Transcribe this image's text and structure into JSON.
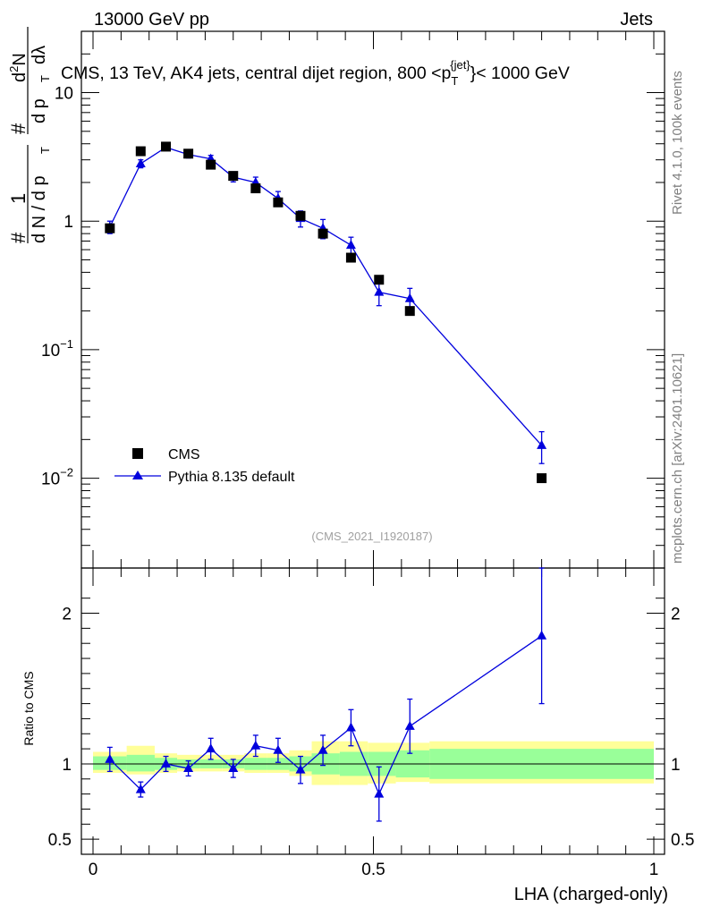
{
  "header": {
    "left": "13000 GeV pp",
    "right": "Jets"
  },
  "side_text": {
    "rivet": "Rivet 4.1.0,  100k events",
    "mcplots": "mcplots.cern.ch [arXiv:2401.10621]"
  },
  "chart_data": [
    {
      "type": "scatter",
      "panel": "main",
      "title": "CMS, 13 TeV, AK4 jets, central dijet region, 800 <p_T^{jet}< 1000 GeV",
      "title_parts": {
        "prefix": "CMS, 13 TeV, AK4 jets, central dijet region, 800 <p",
        "sub": "T",
        "sup": "{jet}",
        "suffix": "}< 1000 GeV"
      },
      "ylabel": "1/N dN/dp_T d²N/dp_T dλ",
      "ylabel_parts": {
        "hash": "#",
        "one": "1",
        "dN": "d N / d p",
        "T": "T",
        "d2N": "d²N",
        "dpdl": "d p",
        "dl": "dλ"
      },
      "yscale": "log",
      "ylim": [
        0.002,
        30
      ],
      "ytick_labels": [
        "10⁻²",
        "10⁻¹",
        "1",
        "10"
      ],
      "ytick_parts": [
        {
          "base": "10",
          "exp": "−2"
        },
        {
          "base": "10",
          "exp": "−1"
        },
        {
          "base": "1",
          "exp": ""
        },
        {
          "base": "10",
          "exp": ""
        }
      ],
      "watermark": "(CMS_2021_I1920187)",
      "legend": {
        "position": "bottom-left",
        "entries": [
          "CMS",
          "Pythia 8.135 default"
        ]
      },
      "series": [
        {
          "name": "CMS",
          "marker": "square",
          "color": "#000000",
          "x": [
            0.03,
            0.085,
            0.13,
            0.17,
            0.21,
            0.25,
            0.29,
            0.33,
            0.37,
            0.41,
            0.46,
            0.51,
            0.565,
            0.8
          ],
          "y": [
            0.88,
            3.5,
            3.8,
            3.35,
            2.75,
            2.25,
            1.8,
            1.4,
            1.1,
            0.8,
            0.52,
            0.35,
            0.2,
            0.01
          ]
        },
        {
          "name": "Pythia 8.135 default",
          "marker": "triangle",
          "color": "#0000dd",
          "x": [
            0.03,
            0.085,
            0.13,
            0.17,
            0.21,
            0.25,
            0.29,
            0.33,
            0.37,
            0.41,
            0.46,
            0.51,
            0.565,
            0.8
          ],
          "y": [
            0.9,
            2.8,
            3.75,
            3.3,
            3.05,
            2.2,
            2.0,
            1.5,
            1.05,
            0.88,
            0.65,
            0.28,
            0.25,
            0.018
          ],
          "err": [
            0.1,
            0.2,
            0.2,
            0.2,
            0.2,
            0.18,
            0.2,
            0.2,
            0.15,
            0.15,
            0.1,
            0.06,
            0.05,
            0.005
          ]
        }
      ]
    },
    {
      "type": "line",
      "panel": "ratio",
      "xlabel": "LHA (charged-only)",
      "ylabel": "Ratio to CMS",
      "ylim": [
        0.4,
        2.3
      ],
      "yticks": [
        0.5,
        1,
        2
      ],
      "ytick_labels": [
        "0.5",
        "1",
        "2"
      ],
      "xlim": [
        0,
        1
      ],
      "xticks": [
        0,
        0.5,
        1
      ],
      "xtick_labels": [
        "0",
        "0.5",
        "1"
      ],
      "band_edges": [
        0.0,
        0.06,
        0.11,
        0.15,
        0.19,
        0.23,
        0.27,
        0.31,
        0.35,
        0.39,
        0.44,
        0.49,
        0.54,
        0.6,
        1.0
      ],
      "band_green": [
        [
          0.96,
          1.05
        ],
        [
          0.95,
          1.06
        ],
        [
          0.96,
          1.04
        ],
        [
          0.97,
          1.03
        ],
        [
          0.97,
          1.03
        ],
        [
          0.97,
          1.03
        ],
        [
          0.96,
          1.04
        ],
        [
          0.96,
          1.04
        ],
        [
          0.95,
          1.05
        ],
        [
          0.93,
          1.07
        ],
        [
          0.92,
          1.08
        ],
        [
          0.92,
          1.08
        ],
        [
          0.91,
          1.09
        ],
        [
          0.9,
          1.1
        ]
      ],
      "band_yellow": [
        [
          0.94,
          1.08
        ],
        [
          0.93,
          1.12
        ],
        [
          0.94,
          1.07
        ],
        [
          0.95,
          1.06
        ],
        [
          0.95,
          1.06
        ],
        [
          0.95,
          1.06
        ],
        [
          0.94,
          1.07
        ],
        [
          0.94,
          1.07
        ],
        [
          0.92,
          1.09
        ],
        [
          0.86,
          1.15
        ],
        [
          0.86,
          1.15
        ],
        [
          0.87,
          1.14
        ],
        [
          0.88,
          1.14
        ],
        [
          0.87,
          1.15
        ]
      ],
      "series": [
        {
          "name": "Pythia 8.135 default / CMS",
          "color": "#0000dd",
          "x": [
            0.03,
            0.085,
            0.13,
            0.17,
            0.21,
            0.25,
            0.29,
            0.33,
            0.37,
            0.41,
            0.46,
            0.51,
            0.565,
            0.8
          ],
          "y": [
            1.03,
            0.83,
            1.0,
            0.97,
            1.1,
            0.97,
            1.12,
            1.09,
            0.96,
            1.09,
            1.24,
            0.8,
            1.25,
            1.85
          ],
          "err": [
            0.08,
            0.05,
            0.05,
            0.05,
            0.07,
            0.06,
            0.07,
            0.08,
            0.09,
            0.1,
            0.12,
            0.18,
            0.18,
            0.45
          ]
        }
      ]
    }
  ]
}
